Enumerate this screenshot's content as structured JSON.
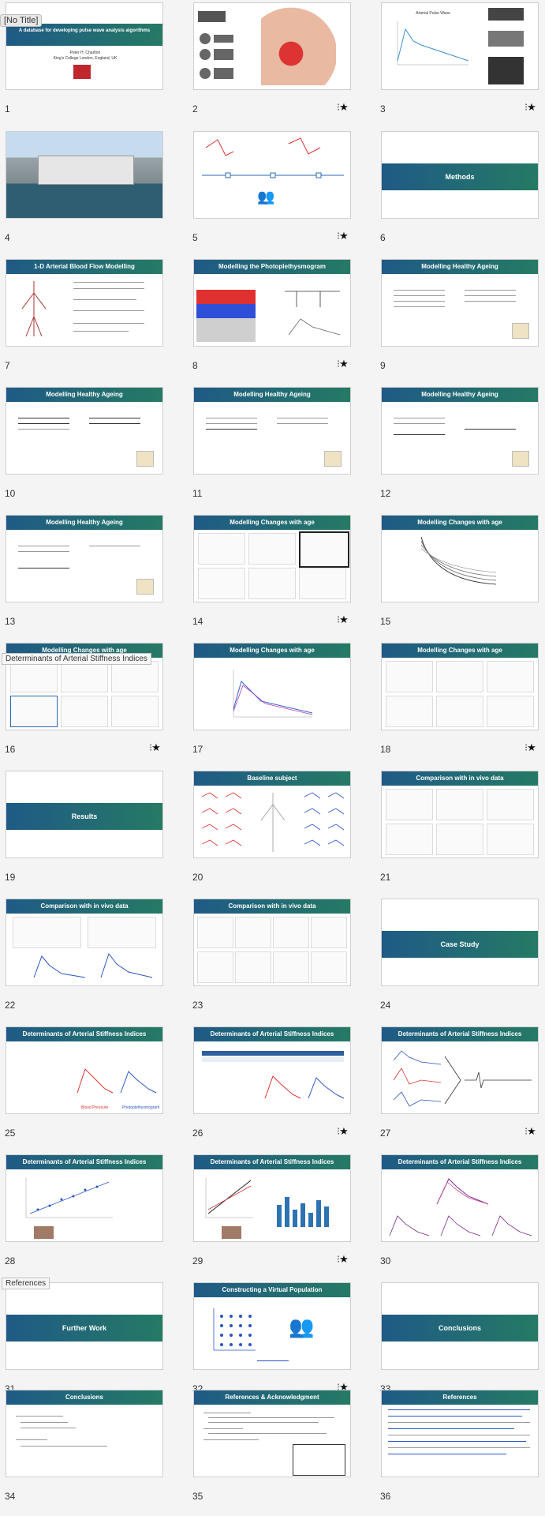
{
  "slides": [
    {
      "number": "1",
      "title": "A database for developing pulse wave analysis algorithms",
      "author": "Peter H. Charlton",
      "affiliation": "King's College London, England, UK",
      "overlay": "[No Title]",
      "starred": false
    },
    {
      "number": "2",
      "title": "",
      "starred": true
    },
    {
      "number": "3",
      "title": "Arterial Pulse Wave",
      "starred": true
    },
    {
      "number": "4",
      "title": "",
      "starred": false
    },
    {
      "number": "5",
      "title": "",
      "starred": true
    },
    {
      "number": "6",
      "title": "Methods",
      "starred": false
    },
    {
      "number": "7",
      "title": "1-D Arterial Blood Flow Modelling",
      "starred": false
    },
    {
      "number": "8",
      "title": "Modelling the Photoplethysmogram",
      "starred": true
    },
    {
      "number": "9",
      "title": "Modelling Healthy Ageing",
      "starred": false
    },
    {
      "number": "10",
      "title": "Modelling Healthy Ageing",
      "starred": false
    },
    {
      "number": "11",
      "title": "Modelling Healthy Ageing",
      "starred": false
    },
    {
      "number": "12",
      "title": "Modelling Healthy Ageing",
      "starred": false
    },
    {
      "number": "13",
      "title": "Modelling Healthy Ageing",
      "starred": false
    },
    {
      "number": "14",
      "title": "Modelling Changes with age",
      "starred": true
    },
    {
      "number": "15",
      "title": "Modelling Changes with age",
      "starred": false
    },
    {
      "number": "16",
      "title": "Modelling Changes with age",
      "overlay": "Determinants of Arterial Stiffness Indices",
      "starred": true
    },
    {
      "number": "17",
      "title": "Modelling Changes with age",
      "starred": false
    },
    {
      "number": "18",
      "title": "Modelling Changes with age",
      "starred": true
    },
    {
      "number": "19",
      "title": "Results",
      "starred": false
    },
    {
      "number": "20",
      "title": "Baseline subject",
      "starred": false
    },
    {
      "number": "21",
      "title": "Comparison with in vivo data",
      "starred": false
    },
    {
      "number": "22",
      "title": "Comparison with in vivo data",
      "starred": false
    },
    {
      "number": "23",
      "title": "Comparison with in vivo data",
      "starred": false
    },
    {
      "number": "24",
      "title": "Case Study",
      "starred": false
    },
    {
      "number": "25",
      "title": "Determinants of Arterial Stiffness Indices",
      "starred": false
    },
    {
      "number": "26",
      "title": "Determinants of Arterial Stiffness Indices",
      "starred": true
    },
    {
      "number": "27",
      "title": "Determinants of Arterial Stiffness Indices",
      "starred": true
    },
    {
      "number": "28",
      "title": "Determinants of Arterial Stiffness Indices",
      "starred": false
    },
    {
      "number": "29",
      "title": "Determinants of Arterial Stiffness Indices",
      "starred": true
    },
    {
      "number": "30",
      "title": "Determinants of Arterial Stiffness Indices",
      "starred": false
    },
    {
      "number": "31",
      "title": "Further Work",
      "overlay": "References",
      "starred": false
    },
    {
      "number": "32",
      "title": "Constructing a Virtual Population",
      "starred": true
    },
    {
      "number": "33",
      "title": "Conclusions",
      "starred": false
    },
    {
      "number": "34",
      "title": "Conclusions",
      "starred": false
    },
    {
      "number": "35",
      "title": "References & Acknowledgment",
      "starred": false
    },
    {
      "number": "36",
      "title": "References",
      "starred": false
    }
  ],
  "star_glyph": "★",
  "dash_glyph": "⁝"
}
